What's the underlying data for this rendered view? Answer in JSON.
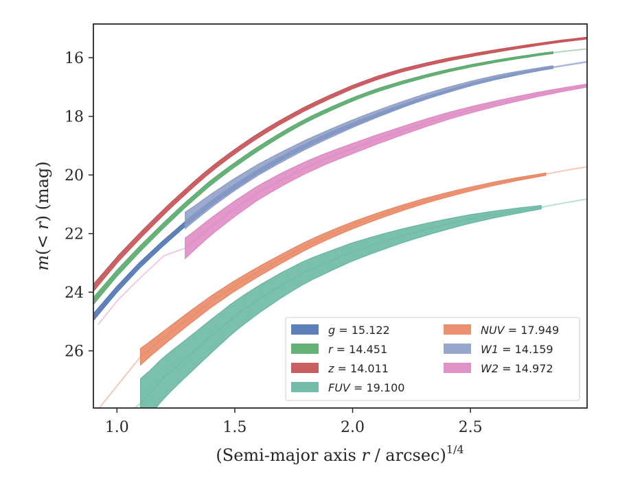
{
  "chart_data": {
    "type": "line",
    "xlabel": "(Semi-major axis r / arcsec)^1/4",
    "xlabel_parts": {
      "pre": "(Semi-major axis ",
      "var": "r",
      "mid": " / arcsec)",
      "sup": "1/4"
    },
    "ylabel": "m(< r) (mag)",
    "ylabel_parts": {
      "var": "m",
      "mid": "(< ",
      "var2": "r",
      "post": ") (mag)"
    },
    "xlim": [
      0.9,
      2.995
    ],
    "ylim": [
      27.95,
      14.85
    ],
    "y_inverted": true,
    "grid": false,
    "legend_placement": "lower-right",
    "x_ticks": [
      {
        "value": 1.0,
        "label": "1.0"
      },
      {
        "value": 1.5,
        "label": "1.5"
      },
      {
        "value": 2.0,
        "label": "2.0"
      },
      {
        "value": 2.5,
        "label": "2.5"
      }
    ],
    "y_ticks": [
      {
        "value": 16,
        "label": "16"
      },
      {
        "value": 18,
        "label": "18"
      },
      {
        "value": 20,
        "label": "20"
      },
      {
        "value": 22,
        "label": "22"
      },
      {
        "value": 24,
        "label": "24"
      },
      {
        "value": 26,
        "label": "26"
      }
    ],
    "series": [
      {
        "key": "g",
        "label_var": "g",
        "label_value": " = 15.122",
        "color": "#4c72b0",
        "band_x": [
          0.9,
          2.85
        ],
        "band_halfwidth": [
          0.12,
          0.03
        ],
        "points": [
          [
            0.9,
            24.85
          ],
          [
            1.0,
            23.9
          ],
          [
            1.1,
            23.05
          ],
          [
            1.2,
            22.3
          ],
          [
            1.3,
            21.6
          ],
          [
            1.4,
            20.95
          ],
          [
            1.5,
            20.4
          ],
          [
            1.6,
            19.88
          ],
          [
            1.7,
            19.42
          ],
          [
            1.8,
            19.0
          ],
          [
            1.9,
            18.62
          ],
          [
            2.0,
            18.28
          ],
          [
            2.1,
            17.96
          ],
          [
            2.2,
            17.67
          ],
          [
            2.3,
            17.4
          ],
          [
            2.4,
            17.15
          ],
          [
            2.5,
            16.92
          ],
          [
            2.6,
            16.72
          ],
          [
            2.7,
            16.55
          ],
          [
            2.8,
            16.4
          ],
          [
            2.9,
            16.27
          ],
          [
            2.995,
            16.15
          ]
        ]
      },
      {
        "key": "r",
        "label_var": "r",
        "label_value": " = 14.451",
        "color": "#55a868",
        "band_x": [
          0.9,
          2.85
        ],
        "band_halfwidth": [
          0.12,
          0.03
        ],
        "points": [
          [
            0.9,
            24.3
          ],
          [
            1.0,
            23.35
          ],
          [
            1.1,
            22.5
          ],
          [
            1.2,
            21.7
          ],
          [
            1.3,
            20.95
          ],
          [
            1.4,
            20.25
          ],
          [
            1.5,
            19.65
          ],
          [
            1.6,
            19.1
          ],
          [
            1.7,
            18.6
          ],
          [
            1.8,
            18.15
          ],
          [
            1.9,
            17.77
          ],
          [
            2.0,
            17.42
          ],
          [
            2.1,
            17.12
          ],
          [
            2.2,
            16.87
          ],
          [
            2.3,
            16.65
          ],
          [
            2.4,
            16.45
          ],
          [
            2.5,
            16.28
          ],
          [
            2.6,
            16.13
          ],
          [
            2.7,
            16.0
          ],
          [
            2.8,
            15.88
          ],
          [
            2.9,
            15.78
          ],
          [
            2.995,
            15.7
          ]
        ]
      },
      {
        "key": "z",
        "label_var": "z",
        "label_value": " = 14.011",
        "color": "#c44e52",
        "band_x": [
          0.9,
          2.995
        ],
        "band_halfwidth": [
          0.12,
          0.03
        ],
        "points": [
          [
            0.9,
            23.85
          ],
          [
            1.0,
            22.9
          ],
          [
            1.1,
            22.05
          ],
          [
            1.2,
            21.25
          ],
          [
            1.3,
            20.5
          ],
          [
            1.4,
            19.8
          ],
          [
            1.5,
            19.2
          ],
          [
            1.6,
            18.65
          ],
          [
            1.7,
            18.17
          ],
          [
            1.8,
            17.73
          ],
          [
            1.9,
            17.35
          ],
          [
            2.0,
            17.0
          ],
          [
            2.1,
            16.7
          ],
          [
            2.2,
            16.45
          ],
          [
            2.3,
            16.25
          ],
          [
            2.4,
            16.07
          ],
          [
            2.5,
            15.92
          ],
          [
            2.6,
            15.78
          ],
          [
            2.7,
            15.65
          ],
          [
            2.8,
            15.53
          ],
          [
            2.9,
            15.42
          ],
          [
            2.995,
            15.33
          ]
        ]
      },
      {
        "key": "FUV",
        "label_var": "FUV",
        "label_value": " = 19.100",
        "color": "#64b5a0",
        "band_x": [
          1.1,
          2.8
        ],
        "band_halfwidth": [
          0.85,
          0.06
        ],
        "points": [
          [
            1.05,
            28.1
          ],
          [
            1.1,
            27.8
          ],
          [
            1.2,
            26.9
          ],
          [
            1.3,
            26.2
          ],
          [
            1.4,
            25.5
          ],
          [
            1.5,
            24.82
          ],
          [
            1.6,
            24.25
          ],
          [
            1.7,
            23.75
          ],
          [
            1.8,
            23.3
          ],
          [
            1.9,
            22.95
          ],
          [
            2.0,
            22.62
          ],
          [
            2.1,
            22.35
          ],
          [
            2.2,
            22.1
          ],
          [
            2.3,
            21.88
          ],
          [
            2.4,
            21.68
          ],
          [
            2.5,
            21.5
          ],
          [
            2.6,
            21.35
          ],
          [
            2.7,
            21.22
          ],
          [
            2.8,
            21.1
          ],
          [
            2.9,
            20.95
          ],
          [
            2.995,
            20.82
          ]
        ]
      },
      {
        "key": "NUV",
        "label_var": "NUV",
        "label_value": " = 17.949",
        "color": "#e8845f",
        "band_x": [
          1.1,
          2.82
        ],
        "band_halfwidth": [
          0.28,
          0.04
        ],
        "points": [
          [
            0.92,
            28.0
          ],
          [
            1.0,
            27.2
          ],
          [
            1.1,
            26.2
          ],
          [
            1.2,
            25.55
          ],
          [
            1.3,
            24.92
          ],
          [
            1.4,
            24.32
          ],
          [
            1.5,
            23.78
          ],
          [
            1.6,
            23.3
          ],
          [
            1.7,
            22.85
          ],
          [
            1.8,
            22.42
          ],
          [
            1.9,
            22.05
          ],
          [
            2.0,
            21.72
          ],
          [
            2.1,
            21.42
          ],
          [
            2.2,
            21.15
          ],
          [
            2.3,
            20.9
          ],
          [
            2.4,
            20.68
          ],
          [
            2.5,
            20.48
          ],
          [
            2.6,
            20.3
          ],
          [
            2.7,
            20.14
          ],
          [
            2.8,
            20.0
          ],
          [
            2.9,
            19.85
          ],
          [
            2.995,
            19.72
          ]
        ]
      },
      {
        "key": "W1",
        "label_var": "W1",
        "label_value": " = 14.159",
        "color": "#8a9bc5",
        "band_x": [
          1.29,
          2.85
        ],
        "band_halfwidth": [
          0.28,
          0.04
        ],
        "points": [
          [
            1.29,
            21.55
          ],
          [
            1.4,
            20.88
          ],
          [
            1.5,
            20.32
          ],
          [
            1.6,
            19.82
          ],
          [
            1.7,
            19.38
          ],
          [
            1.8,
            18.97
          ],
          [
            1.9,
            18.6
          ],
          [
            2.0,
            18.25
          ],
          [
            2.1,
            17.93
          ],
          [
            2.2,
            17.63
          ],
          [
            2.3,
            17.35
          ],
          [
            2.4,
            17.1
          ],
          [
            2.5,
            16.88
          ],
          [
            2.6,
            16.68
          ],
          [
            2.7,
            16.52
          ],
          [
            2.8,
            16.38
          ],
          [
            2.9,
            16.25
          ],
          [
            2.995,
            16.12
          ]
        ]
      },
      {
        "key": "W2",
        "label_var": "W2",
        "label_value": " = 14.972",
        "color": "#dd86c0",
        "band_x": [
          1.29,
          2.995
        ],
        "band_halfwidth": [
          0.35,
          0.05
        ],
        "points": [
          [
            0.92,
            25.1
          ],
          [
            1.0,
            24.3
          ],
          [
            1.1,
            23.5
          ],
          [
            1.2,
            22.75
          ],
          [
            1.29,
            22.5
          ],
          [
            1.4,
            21.75
          ],
          [
            1.5,
            21.15
          ],
          [
            1.6,
            20.6
          ],
          [
            1.7,
            20.15
          ],
          [
            1.8,
            19.75
          ],
          [
            1.9,
            19.4
          ],
          [
            2.0,
            19.1
          ],
          [
            2.1,
            18.8
          ],
          [
            2.2,
            18.52
          ],
          [
            2.3,
            18.25
          ],
          [
            2.4,
            18.0
          ],
          [
            2.5,
            17.78
          ],
          [
            2.6,
            17.58
          ],
          [
            2.7,
            17.4
          ],
          [
            2.8,
            17.23
          ],
          [
            2.9,
            17.08
          ],
          [
            2.995,
            16.95
          ]
        ]
      }
    ]
  }
}
